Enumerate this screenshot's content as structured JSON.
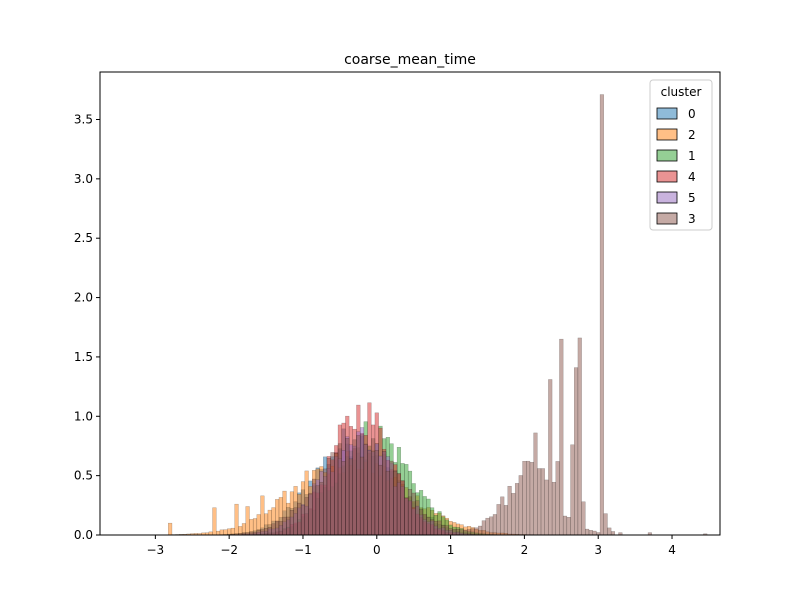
{
  "chart_data": {
    "type": "histogram",
    "title": "coarse_mean_time",
    "xlabel": "",
    "ylabel": "",
    "xlim": [
      -3.75,
      4.65
    ],
    "ylim": [
      0,
      3.9
    ],
    "x_ticks": [
      -3,
      -2,
      -1,
      0,
      1,
      2,
      3,
      4
    ],
    "x_tick_labels": [
      "−3",
      "−2",
      "−1",
      "0",
      "1",
      "2",
      "3",
      "4"
    ],
    "y_ticks": [
      0.0,
      0.5,
      1.0,
      1.5,
      2.0,
      2.5,
      3.0,
      3.5
    ],
    "y_tick_labels": [
      "0.0",
      "0.5",
      "1.0",
      "1.5",
      "2.0",
      "2.5",
      "3.0",
      "3.5"
    ],
    "bin_width": 0.05,
    "legend": {
      "title": "cluster",
      "position": "top-right"
    },
    "series": [
      {
        "name": "0",
        "color": "#1f77b4",
        "peaks": [
          {
            "center": -0.3,
            "sigma": 0.55,
            "amp": 0.8
          }
        ],
        "range": [
          -3.3,
          2.4
        ]
      },
      {
        "name": "2",
        "color": "#ff7f0e",
        "peaks": [
          {
            "center": -0.35,
            "sigma": 0.75,
            "amp": 0.62
          }
        ],
        "range": [
          -3.3,
          2.6
        ],
        "spikes": [
          {
            "x": -2.8,
            "y": 0.1
          },
          {
            "x": -2.2,
            "y": 0.23
          },
          {
            "x": -1.9,
            "y": 0.26
          },
          {
            "x": -1.75,
            "y": 0.24
          },
          {
            "x": -1.55,
            "y": 0.33
          },
          {
            "x": -1.35,
            "y": 0.3
          },
          {
            "x": -1.25,
            "y": 0.37
          },
          {
            "x": -1.1,
            "y": 0.41
          },
          {
            "x": -1.0,
            "y": 0.45
          },
          {
            "x": -0.95,
            "y": 0.54
          }
        ]
      },
      {
        "name": "1",
        "color": "#2ca02c",
        "peaks": [
          {
            "center": -0.05,
            "sigma": 0.5,
            "amp": 0.85
          }
        ],
        "range": [
          -2.0,
          2.4
        ]
      },
      {
        "name": "4",
        "color": "#d62728",
        "peaks": [
          {
            "center": -0.2,
            "sigma": 0.42,
            "amp": 1.02
          }
        ],
        "range": [
          -1.6,
          2.2
        ]
      },
      {
        "name": "5",
        "color": "#9467bd",
        "peaks": [
          {
            "center": -0.25,
            "sigma": 0.5,
            "amp": 0.78
          }
        ],
        "range": [
          -1.8,
          2.0
        ]
      },
      {
        "name": "3",
        "color": "#8c564b",
        "peaks": [
          {
            "center": -0.25,
            "sigma": 0.55,
            "amp": 0.76
          },
          {
            "center": 2.1,
            "sigma": 0.35,
            "amp": 0.55
          }
        ],
        "range": [
          -3.4,
          4.5
        ],
        "spikes": [
          {
            "x": 1.75,
            "y": 0.25
          },
          {
            "x": 2.15,
            "y": 0.86
          },
          {
            "x": 2.25,
            "y": 0.56
          },
          {
            "x": 2.35,
            "y": 1.31
          },
          {
            "x": 2.45,
            "y": 0.62
          },
          {
            "x": 2.5,
            "y": 1.65
          },
          {
            "x": 2.55,
            "y": 0.16
          },
          {
            "x": 2.6,
            "y": 0.15
          },
          {
            "x": 2.65,
            "y": 0.76
          },
          {
            "x": 2.7,
            "y": 1.41
          },
          {
            "x": 2.75,
            "y": 1.66
          },
          {
            "x": 2.8,
            "y": 0.28
          },
          {
            "x": 2.85,
            "y": 0.05
          },
          {
            "x": 2.9,
            "y": 0.04
          },
          {
            "x": 3.05,
            "y": 3.71
          },
          {
            "x": 3.1,
            "y": 0.18
          },
          {
            "x": 3.15,
            "y": 0.06
          },
          {
            "x": 3.2,
            "y": 0.03
          },
          {
            "x": 3.3,
            "y": 0.02
          },
          {
            "x": 3.7,
            "y": 0.02
          },
          {
            "x": 4.45,
            "y": 0.01
          }
        ]
      }
    ]
  }
}
